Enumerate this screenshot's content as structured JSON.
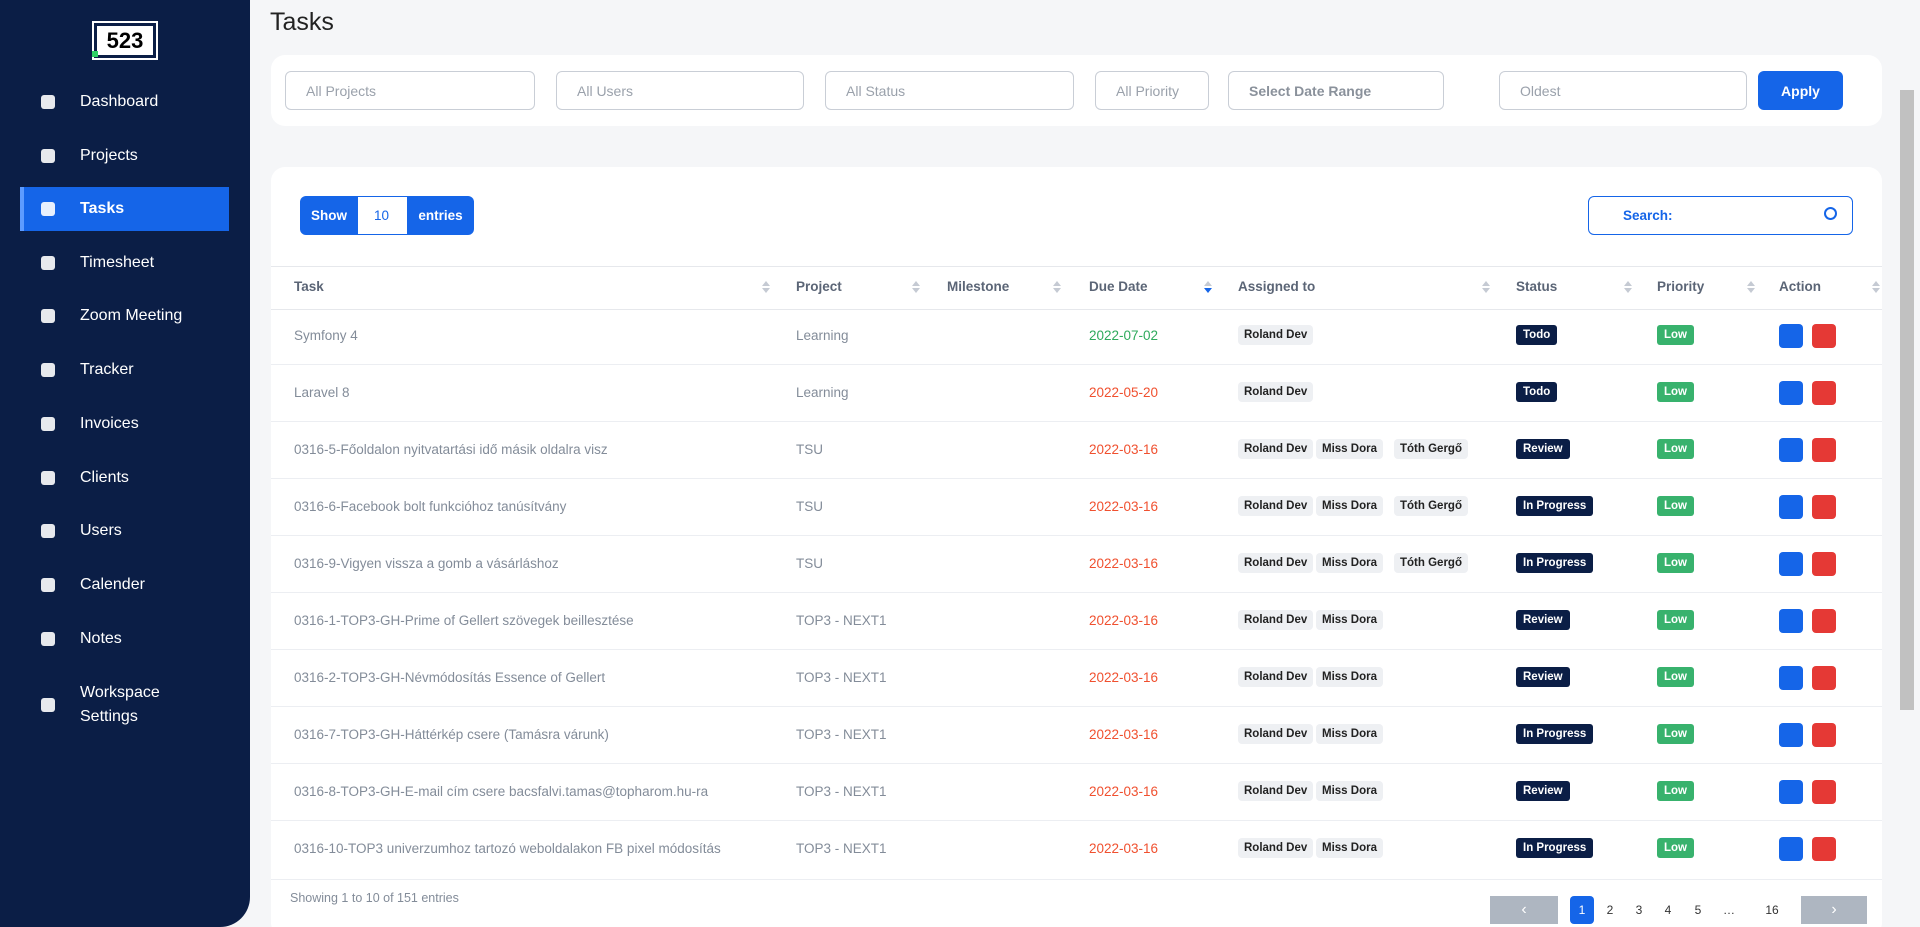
{
  "sidebar": {
    "logo": "523",
    "active": 2,
    "nav": [
      "Dashboard",
      "Projects",
      "Tasks",
      "Timesheet",
      "Zoom Meeting",
      "Tracker",
      "Invoices",
      "Clients",
      "Users",
      "Calender",
      "Notes",
      "Workspace Settings"
    ]
  },
  "header": {
    "title": "Tasks"
  },
  "filters": {
    "fields": [
      "All Projects",
      "All Users",
      "All Status",
      "All Priority",
      "Select Date Range",
      "Oldest"
    ],
    "apply": "Apply"
  },
  "table_controls": {
    "show": "Show",
    "entries_value": "10",
    "entries": "entries",
    "search": "Search:"
  },
  "table": {
    "columns": [
      "Task",
      "Project",
      "Milestone",
      "Due Date",
      "Assigned to",
      "Status",
      "Priority",
      "Action"
    ],
    "rows": [
      {
        "task": "Symfony 4",
        "project": "Learning",
        "due": "2022-07-02",
        "due_color": "#2eaa5c",
        "assigned": [
          "Roland Dev"
        ],
        "status": "Todo",
        "priority": "Low"
      },
      {
        "task": "Laravel 8",
        "project": "Learning",
        "due": "2022-05-20",
        "due_color": "#f0502f",
        "assigned": [
          "Roland Dev"
        ],
        "status": "Todo",
        "priority": "Low"
      },
      {
        "task": "0316-5-Főoldalon nyitvatartási idő másik oldalra visz",
        "project": "TSU",
        "due": "2022-03-16",
        "due_color": "#f0502f",
        "assigned": [
          "Roland Dev",
          "Miss Dora",
          "Tóth Gergő"
        ],
        "status": "Review",
        "priority": "Low"
      },
      {
        "task": "0316-6-Facebook bolt funkcióhoz tanúsítvány",
        "project": "TSU",
        "due": "2022-03-16",
        "due_color": "#f0502f",
        "assigned": [
          "Roland Dev",
          "Miss Dora",
          "Tóth Gergő"
        ],
        "status": "In Progress",
        "priority": "Low"
      },
      {
        "task": "0316-9-Vigyen vissza a gomb a vásárláshoz",
        "project": "TSU",
        "due": "2022-03-16",
        "due_color": "#f0502f",
        "assigned": [
          "Roland Dev",
          "Miss Dora",
          "Tóth Gergő"
        ],
        "status": "In Progress",
        "priority": "Low"
      },
      {
        "task": "0316-1-TOP3-GH-Prime of Gellert szövegek beillesztése",
        "project": "TOP3 - NEXT1",
        "due": "2022-03-16",
        "due_color": "#f0502f",
        "assigned": [
          "Roland Dev",
          "Miss Dora"
        ],
        "status": "Review",
        "priority": "Low"
      },
      {
        "task": "0316-2-TOP3-GH-Névmódosítás Essence of Gellert",
        "project": "TOP3 - NEXT1",
        "due": "2022-03-16",
        "due_color": "#f0502f",
        "assigned": [
          "Roland Dev",
          "Miss Dora"
        ],
        "status": "Review",
        "priority": "Low"
      },
      {
        "task": "0316-7-TOP3-GH-Háttérkép csere (Tamásra várunk)",
        "project": "TOP3 - NEXT1",
        "due": "2022-03-16",
        "due_color": "#f0502f",
        "assigned": [
          "Roland Dev",
          "Miss Dora"
        ],
        "status": "In Progress",
        "priority": "Low"
      },
      {
        "task": "0316-8-TOP3-GH-E-mail cím csere bacsfalvi.tamas@topharom.hu-ra",
        "project": "TOP3 - NEXT1",
        "due": "2022-03-16",
        "due_color": "#f0502f",
        "assigned": [
          "Roland Dev",
          "Miss Dora"
        ],
        "status": "Review",
        "priority": "Low"
      },
      {
        "task": "0316-10-TOP3 univerzumhoz tartozó weboldalakon FB pixel módosítás",
        "project": "TOP3 - NEXT1",
        "due": "2022-03-16",
        "due_color": "#f0502f",
        "assigned": [
          "Roland Dev",
          "Miss Dora"
        ],
        "status": "In Progress",
        "priority": "Low"
      }
    ]
  },
  "footer": {
    "info": "Showing 1 to 10 of 151 entries",
    "prev": "‹",
    "next": "›",
    "pages": [
      "1",
      "2",
      "3",
      "4",
      "5",
      "…",
      "16"
    ],
    "active_page": 0
  }
}
